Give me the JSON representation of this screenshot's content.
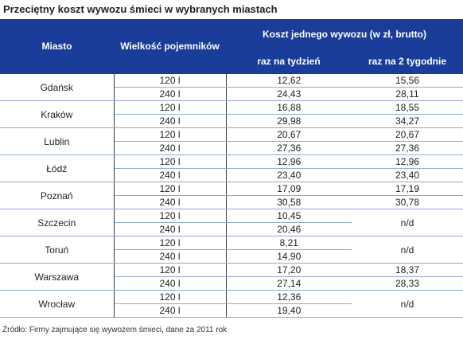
{
  "title": "Przeciętny koszt wywozu śmieci w wybranych  miastach",
  "header": {
    "city": "Miasto",
    "container_size": "Wielkość pojemników",
    "cost_group": "Koszt jednego wywozu (w zł, brutto)",
    "weekly": "raz na tydzień",
    "biweekly": "raz na 2 tygodnie"
  },
  "rows": [
    {
      "city": "Gdańsk",
      "sizes": [
        "120 l",
        "240 l"
      ],
      "weekly": [
        "12,62",
        "24,43"
      ],
      "biweekly": [
        "15,56",
        "28,11"
      ]
    },
    {
      "city": "Kraków",
      "sizes": [
        "120 l",
        "240 l"
      ],
      "weekly": [
        "16,88",
        "29,98"
      ],
      "biweekly": [
        "18,55",
        "34,27"
      ]
    },
    {
      "city": "Lublin",
      "sizes": [
        "120 l",
        "240 l"
      ],
      "weekly": [
        "20,67",
        "27,36"
      ],
      "biweekly": [
        "20,67",
        "27,36"
      ]
    },
    {
      "city": "Łódź",
      "sizes": [
        "120 l",
        "240 l"
      ],
      "weekly": [
        "12,96",
        "23,40"
      ],
      "biweekly": [
        "12,96",
        "23,40"
      ]
    },
    {
      "city": "Poznań",
      "sizes": [
        "120 l",
        "240 l"
      ],
      "weekly": [
        "17,09",
        "30,58"
      ],
      "biweekly": [
        "17,19",
        "30,78"
      ]
    },
    {
      "city": "Szczecin",
      "sizes": [
        "120 l",
        "240 l"
      ],
      "weekly": [
        "10,45",
        "20,46"
      ],
      "biweekly": [
        "n/d"
      ]
    },
    {
      "city": "Toruń",
      "sizes": [
        "120 l",
        "240 l"
      ],
      "weekly": [
        "8,21",
        "14,90"
      ],
      "biweekly": [
        "n/d"
      ]
    },
    {
      "city": "Warszawa",
      "sizes": [
        "120 l",
        "240 l"
      ],
      "weekly": [
        "17,20",
        "27,14"
      ],
      "biweekly": [
        "18,37",
        "28,33"
      ]
    },
    {
      "city": "Wrocław",
      "sizes": [
        "120 l",
        "240 l"
      ],
      "weekly": [
        "12,36",
        "19,40"
      ],
      "biweekly": [
        "n/d"
      ]
    }
  ],
  "source": "Źródło: Firmy zajmujące się wywozem śmieci, dane za 2011 rok"
}
